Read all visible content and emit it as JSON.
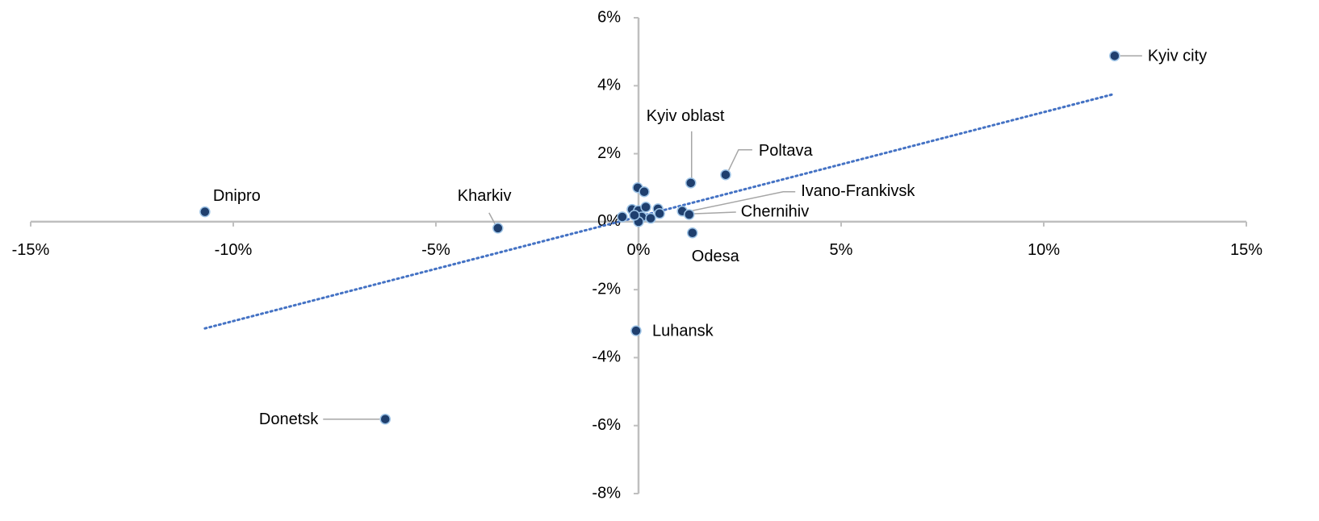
{
  "chart_data": {
    "type": "scatter",
    "labels": [
      "Kyiv city",
      "Dnipro",
      "Kharkiv",
      "Donetsk",
      "Luhansk",
      "Kyiv oblast",
      "Poltava",
      "Odesa",
      "Ivano-Frankivsk",
      "Chernihiv",
      null,
      null,
      null,
      null,
      null,
      null,
      null,
      null,
      null,
      null,
      null,
      null
    ],
    "series": [
      {
        "color": "#1f3f6e",
        "x": [
          11.75,
          -10.7,
          -3.47,
          -6.25,
          -0.06,
          1.29,
          2.15,
          1.33,
          1.08,
          1.25,
          -0.4,
          -0.16,
          -0.02,
          0.14,
          0,
          0.18,
          0.08,
          0.3,
          0.48,
          0.52,
          0,
          -0.1
        ],
        "values": [
          4.88,
          0.29,
          -0.19,
          -5.81,
          -3.21,
          1.14,
          1.38,
          -0.33,
          0.31,
          0.21,
          0.14,
          0.36,
          1.0,
          0.88,
          0.33,
          0.43,
          0.14,
          0.1,
          0.38,
          0.24,
          0.0,
          0.19
        ]
      }
    ],
    "trendline": {
      "color": "#4472c4",
      "x": [
        -10.7,
        11.75
      ],
      "values": [
        -3.14,
        3.76
      ]
    },
    "xlim": [
      -15,
      15
    ],
    "xticks": [
      {
        "value": -15,
        "label": "-15%"
      },
      {
        "value": -10,
        "label": "-10%"
      },
      {
        "value": -5,
        "label": "-5%"
      },
      {
        "value": 0,
        "label": "0%"
      },
      {
        "value": 5,
        "label": "5%"
      },
      {
        "value": 10,
        "label": "10%"
      },
      {
        "value": 15,
        "label": "15%"
      }
    ],
    "ylim": [
      -8,
      6
    ],
    "yticks": [
      {
        "value": -8,
        "label": "-8%"
      },
      {
        "value": -6,
        "label": "-6%"
      },
      {
        "value": -4,
        "label": "-4%"
      },
      {
        "value": -2,
        "label": "-2%"
      },
      {
        "value": 0,
        "label": "0%"
      },
      {
        "value": 2,
        "label": "2%"
      },
      {
        "value": 4,
        "label": "4%"
      },
      {
        "value": 6,
        "label": "6%"
      }
    ]
  }
}
